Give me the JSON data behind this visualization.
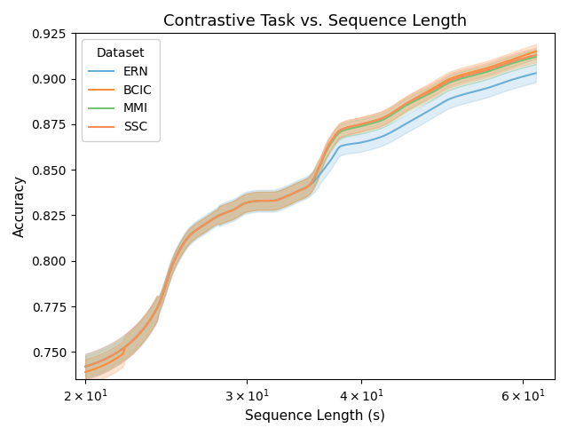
{
  "title": "Contrastive Task vs. Sequence Length",
  "xlabel": "Sequence Length (s)",
  "ylabel": "Accuracy",
  "legend_title": "Dataset",
  "datasets": [
    "ERN",
    "BCIC",
    "MMI",
    "SSC"
  ],
  "colors": [
    "#6baed6",
    "#fd8d3c",
    "#74c476",
    "#fc8d59"
  ],
  "ylim": [
    0.735,
    0.925
  ],
  "xlim": [
    19.5,
    65
  ],
  "title_fontsize": 13,
  "label_fontsize": 11,
  "tick_fontsize": 10,
  "alpha_fill": 0.22,
  "linewidth": 1.5
}
